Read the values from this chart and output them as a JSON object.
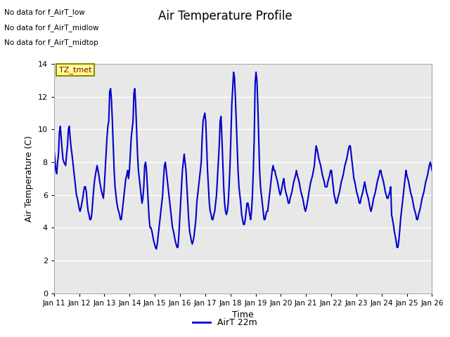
{
  "title": "Air Temperature Profile",
  "xlabel": "Time",
  "ylabel": "Air Temperature (C)",
  "ylim": [
    0,
    14
  ],
  "line_color": "#0000CC",
  "line_width": 1.5,
  "background_color": "#ffffff",
  "plot_bg_color": "#e8e8e8",
  "grid_color": "#ffffff",
  "legend_label": "AirT 22m",
  "annotations": [
    "No data for f_AirT_low",
    "No data for f_AirT_midlow",
    "No data for f_AirT_midtop"
  ],
  "tz_label": "TZ_tmet",
  "x_tick_labels": [
    "Jan 11",
    "Jan 12",
    "Jan 13",
    "Jan 14",
    "Jan 15",
    "Jan 16",
    "Jan 17",
    "Jan 18",
    "Jan 19",
    "Jan 20",
    "Jan 21",
    "Jan 22",
    "Jan 23",
    "Jan 24",
    "Jan 25",
    "Jan 26"
  ],
  "y_ticks": [
    0,
    2,
    4,
    6,
    8,
    10,
    12,
    14
  ],
  "temperature_data": [
    8.8,
    8.2,
    7.5,
    7.3,
    8.0,
    8.5,
    9.8,
    10.2,
    9.5,
    8.8,
    8.2,
    8.0,
    7.9,
    7.8,
    8.5,
    9.0,
    10.0,
    10.2,
    9.5,
    8.9,
    8.5,
    8.0,
    7.5,
    7.0,
    6.5,
    6.0,
    5.8,
    5.5,
    5.2,
    5.0,
    5.2,
    5.5,
    5.8,
    6.2,
    6.5,
    6.5,
    6.2,
    5.5,
    5.0,
    4.8,
    4.5,
    4.5,
    4.8,
    5.5,
    6.2,
    6.8,
    7.2,
    7.5,
    7.8,
    7.5,
    7.2,
    6.8,
    6.5,
    6.2,
    6.0,
    5.8,
    6.5,
    7.5,
    8.5,
    9.5,
    10.2,
    10.5,
    12.3,
    12.5,
    11.8,
    10.5,
    9.0,
    7.5,
    6.5,
    6.0,
    5.5,
    5.2,
    5.0,
    4.8,
    4.5,
    4.5,
    5.0,
    5.5,
    6.0,
    6.5,
    7.0,
    7.2,
    7.5,
    7.0,
    7.5,
    8.5,
    9.5,
    10.0,
    10.5,
    12.2,
    12.5,
    11.5,
    10.0,
    8.5,
    7.5,
    7.0,
    6.5,
    6.0,
    5.5,
    5.8,
    6.5,
    7.8,
    8.0,
    7.5,
    6.5,
    5.5,
    4.5,
    4.0,
    4.0,
    3.8,
    3.5,
    3.2,
    3.0,
    2.8,
    2.7,
    3.0,
    3.5,
    4.0,
    4.5,
    5.0,
    5.5,
    6.0,
    7.0,
    7.8,
    8.0,
    7.5,
    7.0,
    6.5,
    6.0,
    5.5,
    5.0,
    4.5,
    4.0,
    3.8,
    3.5,
    3.2,
    3.0,
    2.8,
    2.8,
    3.5,
    4.5,
    5.5,
    6.5,
    7.5,
    8.0,
    8.5,
    8.0,
    7.5,
    6.5,
    5.5,
    4.5,
    3.8,
    3.5,
    3.2,
    3.0,
    3.2,
    3.5,
    4.0,
    4.5,
    5.5,
    6.0,
    6.5,
    7.0,
    7.5,
    8.0,
    9.5,
    10.5,
    10.8,
    11.0,
    10.5,
    9.0,
    7.5,
    6.5,
    5.5,
    5.0,
    4.8,
    4.5,
    4.5,
    4.8,
    5.0,
    5.5,
    6.0,
    7.0,
    8.0,
    9.0,
    10.5,
    10.8,
    9.5,
    8.0,
    6.5,
    5.5,
    5.0,
    4.8,
    5.0,
    5.5,
    6.5,
    7.8,
    9.5,
    11.5,
    12.5,
    13.5,
    13.2,
    12.0,
    10.5,
    9.0,
    7.5,
    6.5,
    6.0,
    5.5,
    4.8,
    4.5,
    4.2,
    4.2,
    4.5,
    5.0,
    5.5,
    5.5,
    5.2,
    4.8,
    4.5,
    5.0,
    6.0,
    7.5,
    9.5,
    12.8,
    13.5,
    13.0,
    11.5,
    9.5,
    7.5,
    6.5,
    6.0,
    5.5,
    5.0,
    4.5,
    4.5,
    4.8,
    5.0,
    5.0,
    5.5,
    6.0,
    6.5,
    7.0,
    7.5,
    7.8,
    7.5,
    7.5,
    7.2,
    7.0,
    6.8,
    6.5,
    6.2,
    6.0,
    6.2,
    6.5,
    6.8,
    7.0,
    6.5,
    6.2,
    6.0,
    5.8,
    5.5,
    5.5,
    5.8,
    6.0,
    6.2,
    6.5,
    6.8,
    7.0,
    7.2,
    7.5,
    7.2,
    7.0,
    6.8,
    6.5,
    6.2,
    6.0,
    5.8,
    5.5,
    5.2,
    5.0,
    5.2,
    5.5,
    5.8,
    6.2,
    6.5,
    6.8,
    7.0,
    7.2,
    7.5,
    7.8,
    8.5,
    9.0,
    8.8,
    8.5,
    8.2,
    8.0,
    7.8,
    7.5,
    7.2,
    7.0,
    6.8,
    6.5,
    6.5,
    6.5,
    6.8,
    7.0,
    7.2,
    7.5,
    7.5,
    7.0,
    6.5,
    6.0,
    5.8,
    5.5,
    5.5,
    5.8,
    6.0,
    6.2,
    6.5,
    6.8,
    7.0,
    7.2,
    7.5,
    7.8,
    8.0,
    8.2,
    8.5,
    8.8,
    9.0,
    9.0,
    8.5,
    8.0,
    7.5,
    7.0,
    6.8,
    6.5,
    6.2,
    6.0,
    5.8,
    5.5,
    5.5,
    5.8,
    6.0,
    6.2,
    6.5,
    6.8,
    6.5,
    6.2,
    6.0,
    5.8,
    5.5,
    5.2,
    5.0,
    5.2,
    5.5,
    5.8,
    6.0,
    6.2,
    6.5,
    6.8,
    7.0,
    7.2,
    7.5,
    7.5,
    7.2,
    7.0,
    6.8,
    6.5,
    6.2,
    6.0,
    5.8,
    5.8,
    6.0,
    6.2,
    6.5,
    4.8,
    4.5,
    4.2,
    3.8,
    3.5,
    3.2,
    2.8,
    2.8,
    3.2,
    3.8,
    4.5,
    5.0,
    5.5,
    6.0,
    6.5,
    7.0,
    7.5,
    7.2,
    7.0,
    6.8,
    6.5,
    6.2,
    6.0,
    5.8,
    5.5,
    5.2,
    5.0,
    4.8,
    4.5,
    4.5,
    4.8,
    5.0,
    5.2,
    5.5,
    5.8,
    6.0,
    6.2,
    6.5,
    6.8,
    7.0,
    7.2,
    7.5,
    7.8,
    8.0,
    7.8,
    7.5
  ]
}
